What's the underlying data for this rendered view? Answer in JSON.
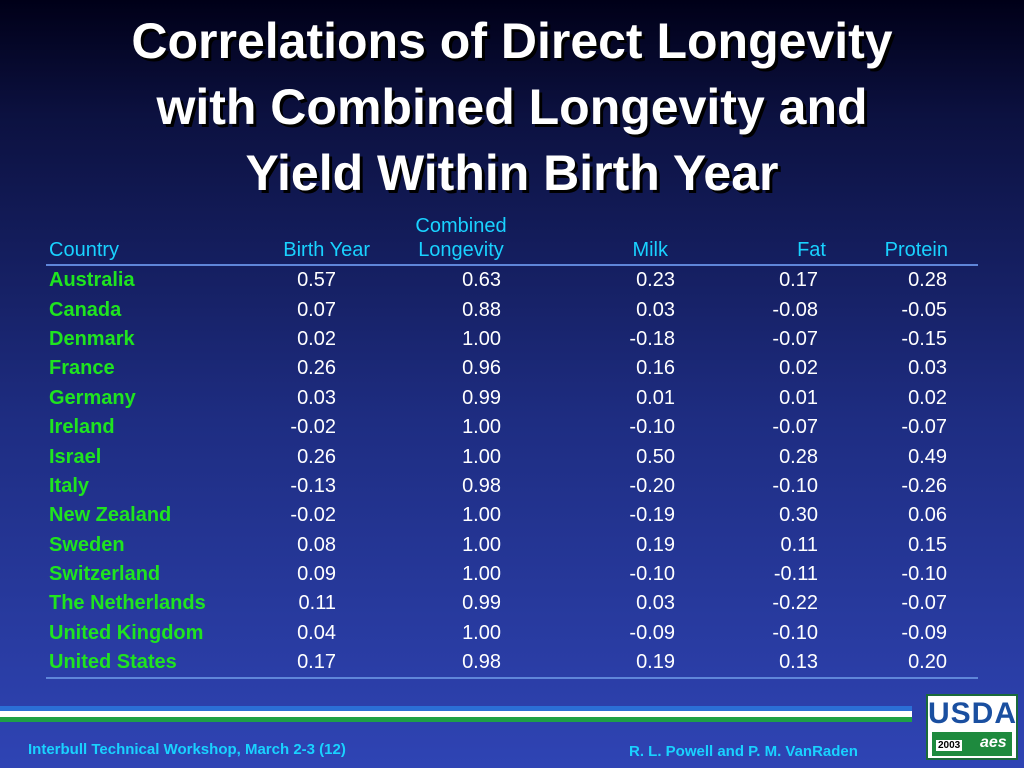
{
  "title": {
    "line1": "Correlations of Direct Longevity",
    "line2": "with Combined Longevity and",
    "line3": "Yield Within Birth Year"
  },
  "table": {
    "headers": {
      "country": "Country",
      "birth_year": "Birth Year",
      "combined_line1": "Combined",
      "combined_line2": "Longevity",
      "milk": "Milk",
      "fat": "Fat",
      "protein": "Protein"
    },
    "rows": [
      [
        "Australia",
        "0.57",
        "0.63",
        "0.23",
        "0.17",
        "0.28"
      ],
      [
        "Canada",
        "0.07",
        "0.88",
        "0.03",
        "-0.08",
        "-0.05"
      ],
      [
        "Denmark",
        "0.02",
        "1.00",
        "-0.18",
        "-0.07",
        "-0.15"
      ],
      [
        "France",
        "0.26",
        "0.96",
        "0.16",
        "0.02",
        "0.03"
      ],
      [
        "Germany",
        "0.03",
        "0.99",
        "0.01",
        "0.01",
        "0.02"
      ],
      [
        "Ireland",
        "-0.02",
        "1.00",
        "-0.10",
        "-0.07",
        "-0.07"
      ],
      [
        "Israel",
        "0.26",
        "1.00",
        "0.50",
        "0.28",
        "0.49"
      ],
      [
        "Italy",
        "-0.13",
        "0.98",
        "-0.20",
        "-0.10",
        "-0.26"
      ],
      [
        "New Zealand",
        "-0.02",
        "1.00",
        "-0.19",
        "0.30",
        "0.06"
      ],
      [
        "Sweden",
        "0.08",
        "1.00",
        "0.19",
        "0.11",
        "0.15"
      ],
      [
        "Switzerland",
        "0.09",
        "1.00",
        "-0.10",
        "-0.11",
        "-0.10"
      ],
      [
        "The Netherlands",
        "0.11",
        "0.99",
        "0.03",
        "-0.22",
        "-0.07"
      ],
      [
        "United Kingdom",
        "0.04",
        "1.00",
        "-0.09",
        "-0.10",
        "-0.09"
      ],
      [
        "United States",
        "0.17",
        "0.98",
        "0.19",
        "0.13",
        "0.20"
      ]
    ]
  },
  "footer": {
    "left": "Interbull Technical Workshop, March 2-3 (12)",
    "right": "R. L. Powell  and P. M. VanRaden"
  },
  "logo": {
    "text": "USDA",
    "year": "2003",
    "mark": "aes"
  },
  "colors": {
    "title": "#ffffff",
    "header": "#19d2ff",
    "country": "#1fe41f",
    "value": "#ffffff",
    "background_top": "#000018",
    "background_bottom": "#2f44b4"
  }
}
